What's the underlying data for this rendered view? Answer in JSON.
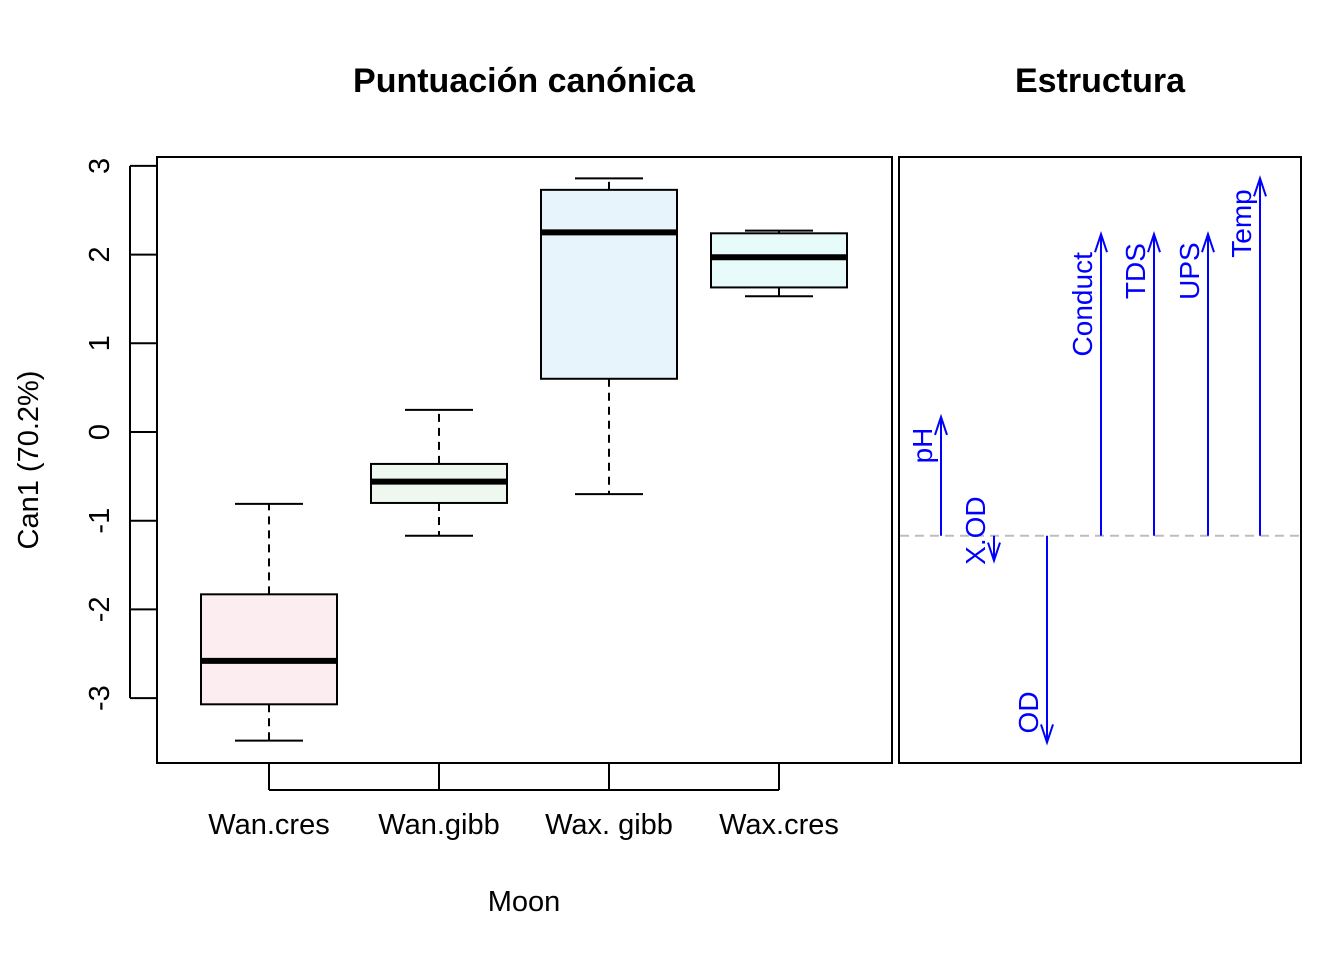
{
  "chart_data": [
    {
      "type": "boxplot",
      "title": "Puntuación canónica",
      "xlabel": "Moon",
      "ylabel": "Can1 (70.2%)",
      "ylim": [
        -3.75,
        3.1
      ],
      "yticks": [
        "-3",
        "-2",
        "-1",
        "0",
        "1",
        "2",
        "3"
      ],
      "categories": [
        "Wan.cres",
        "Wan.gibb",
        "Wax. gibb",
        "Wax.cres"
      ],
      "boxes": [
        {
          "name": "Wan.cres",
          "whisker_low": -3.48,
          "q1": -3.07,
          "median": -2.58,
          "q3": -1.83,
          "whisker_high": -0.81,
          "fill": "#fbedf0"
        },
        {
          "name": "Wan.gibb",
          "whisker_low": -1.17,
          "q1": -0.8,
          "median": -0.56,
          "q3": -0.36,
          "whisker_high": 0.25,
          "fill": "#eef8ee"
        },
        {
          "name": "Wax. gibb",
          "whisker_low": -0.7,
          "q1": 0.6,
          "median": 2.25,
          "q3": 2.73,
          "whisker_high": 2.86,
          "fill": "#e8f4fb"
        },
        {
          "name": "Wax.cres",
          "whisker_low": 1.53,
          "q1": 1.63,
          "median": 1.97,
          "q3": 2.24,
          "whisker_high": 2.27,
          "fill": "#e8fbfb"
        }
      ]
    },
    {
      "type": "arrows",
      "title": "Estructura",
      "ylim": [
        -3.75,
        3.1
      ],
      "reference_line": -1.17,
      "color": "#0000ff",
      "series": [
        {
          "name": "pH",
          "value": 0.17
        },
        {
          "name": "X.OD",
          "value": -1.45
        },
        {
          "name": "OD",
          "value": -3.5
        },
        {
          "name": "Conduct",
          "value": 2.23
        },
        {
          "name": "TDS",
          "value": 2.23
        },
        {
          "name": "UPS",
          "value": 2.23
        },
        {
          "name": "Temp",
          "value": 2.86
        }
      ]
    }
  ]
}
